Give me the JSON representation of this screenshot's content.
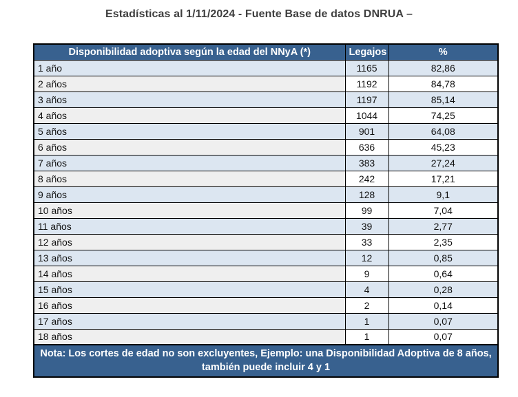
{
  "title": "Estadísticas al 1/11/2024 - Fuente Base de datos DNRUA –",
  "colors": {
    "header_bg": "#38618f",
    "row_blue": "#dce6f1",
    "row_gray": "#efefef",
    "title_color": "#3f3f3f",
    "border": "#000000"
  },
  "table": {
    "headers": [
      "Disponibilidad adoptiva según la edad del NNyA (*)",
      "Legajos",
      "%"
    ],
    "rows": [
      {
        "edad": "1 año",
        "legajos": "1165",
        "pct": "82,86"
      },
      {
        "edad": "2 años",
        "legajos": "1192",
        "pct": "84,78"
      },
      {
        "edad": "3 años",
        "legajos": "1197",
        "pct": "85,14"
      },
      {
        "edad": "4 años",
        "legajos": "1044",
        "pct": "74,25"
      },
      {
        "edad": "5 años",
        "legajos": "901",
        "pct": "64,08"
      },
      {
        "edad": "6 años",
        "legajos": "636",
        "pct": "45,23"
      },
      {
        "edad": "7 años",
        "legajos": "383",
        "pct": "27,24"
      },
      {
        "edad": "8 años",
        "legajos": "242",
        "pct": "17,21"
      },
      {
        "edad": "9 años",
        "legajos": "128",
        "pct": "9,1"
      },
      {
        "edad": "10 años",
        "legajos": "99",
        "pct": "7,04"
      },
      {
        "edad": "11 años",
        "legajos": "39",
        "pct": "2,77"
      },
      {
        "edad": "12 años",
        "legajos": "33",
        "pct": "2,35"
      },
      {
        "edad": "13 años",
        "legajos": "12",
        "pct": "0,85"
      },
      {
        "edad": "14 años",
        "legajos": "9",
        "pct": "0,64"
      },
      {
        "edad": "15 años",
        "legajos": "4",
        "pct": "0,28"
      },
      {
        "edad": "16 años",
        "legajos": "2",
        "pct": "0,14"
      },
      {
        "edad": "17 años",
        "legajos": "1",
        "pct": "0,07"
      },
      {
        "edad": "18 años",
        "legajos": "1",
        "pct": "0,07"
      }
    ],
    "note": "Nota: Los cortes de edad no son excluyentes, Ejemplo: una Disponibilidad Adoptiva de 8 años, también puede incluir 4 y 1"
  }
}
